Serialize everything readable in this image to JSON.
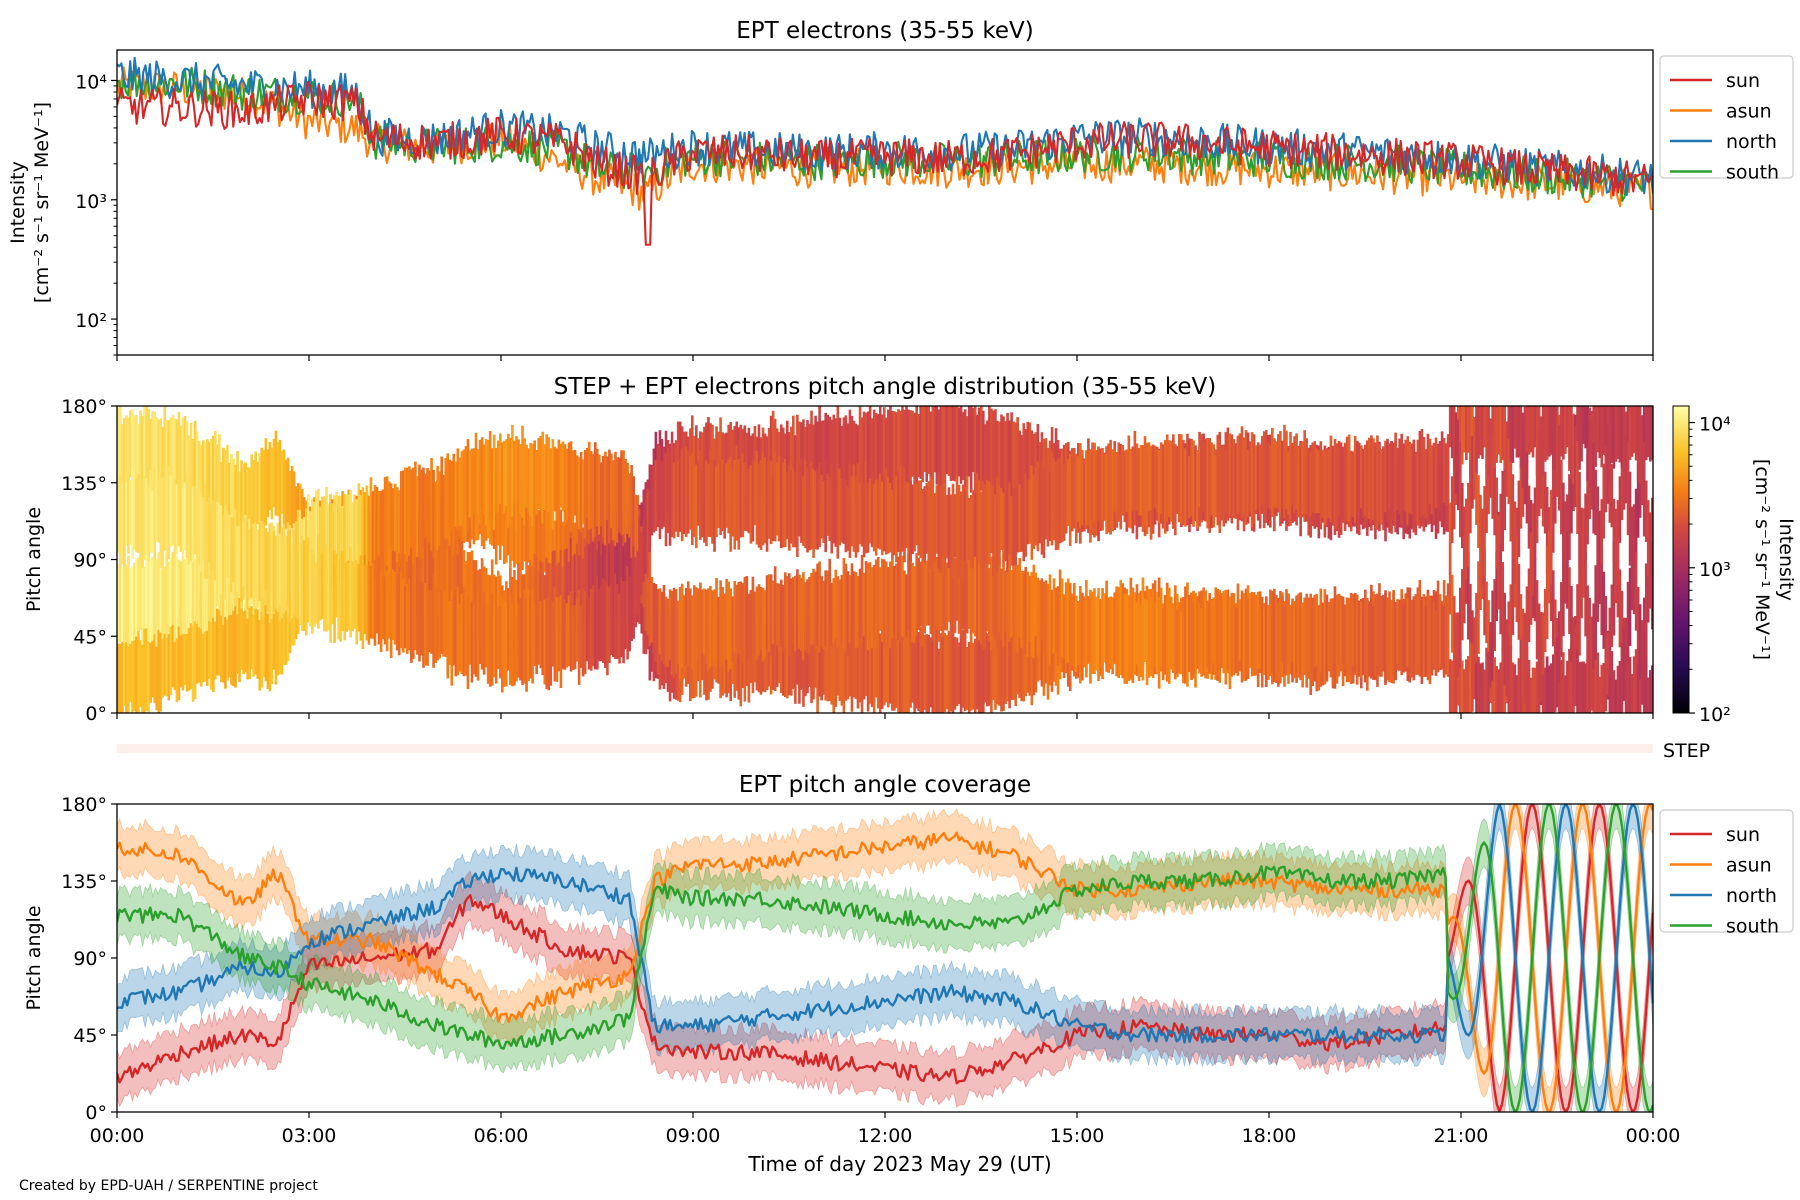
{
  "colors": {
    "sun": "#d62728",
    "asun": "#ff7f0e",
    "north": "#1f77b4",
    "south": "#2ca02c"
  },
  "xaxis": {
    "label": "Time of day 2023 May 29 (UT)",
    "ticks": [
      "00:00",
      "03:00",
      "06:00",
      "09:00",
      "12:00",
      "15:00",
      "18:00",
      "21:00",
      "00:00"
    ],
    "range_hours": [
      0,
      24
    ]
  },
  "credit": "Created by EPD-UAH / SERPENTINE project",
  "chart_data": [
    {
      "type": "line",
      "title": "EPT electrons (35-55 keV)",
      "ylabel": [
        "Intensity",
        "[cm⁻² s⁻¹ sr⁻¹ MeV⁻¹]"
      ],
      "yscale": "log",
      "ylim": [
        50,
        18000
      ],
      "yticks": [
        "10²",
        "10³",
        "10⁴"
      ],
      "legend": {
        "placement": "outside-right-top",
        "entries": [
          "sun",
          "asun",
          "north",
          "south"
        ]
      },
      "x_hours": [
        0,
        1,
        2,
        3,
        3.7,
        4,
        5,
        6,
        7,
        7.5,
        8.3,
        9,
        10,
        11,
        12,
        13,
        14,
        15,
        16,
        17,
        18,
        19,
        20,
        21,
        22,
        23,
        24
      ],
      "series": [
        {
          "name": "sun",
          "values": [
            6000,
            6000,
            5500,
            7000,
            6500,
            3300,
            3000,
            3500,
            3000,
            2000,
            1500,
            2500,
            2400,
            2200,
            2300,
            2200,
            2400,
            3000,
            3200,
            3000,
            2700,
            2500,
            2300,
            2100,
            1800,
            1600,
            1400
          ]
        },
        {
          "name": "asun",
          "values": [
            9000,
            8500,
            7500,
            4500,
            4000,
            3000,
            2700,
            3200,
            2000,
            1500,
            1100,
            2000,
            1900,
            1800,
            1900,
            1800,
            1900,
            2000,
            2000,
            1900,
            1800,
            1700,
            1600,
            1500,
            1400,
            1300,
            1200
          ]
        },
        {
          "name": "north",
          "values": [
            11000,
            10000,
            9000,
            8500,
            8000,
            3400,
            3200,
            4000,
            3500,
            2700,
            2300,
            2800,
            2600,
            2500,
            2600,
            2500,
            2700,
            3300,
            3400,
            3100,
            2800,
            2600,
            2400,
            2200,
            1900,
            1700,
            1500
          ]
        },
        {
          "name": "south",
          "values": [
            10000,
            9500,
            8000,
            7500,
            7000,
            3100,
            2800,
            3000,
            2600,
            1800,
            1700,
            2300,
            2200,
            2100,
            2200,
            2100,
            2200,
            2400,
            2500,
            2300,
            2200,
            2100,
            2000,
            1800,
            1600,
            1500,
            1300
          ]
        }
      ]
    },
    {
      "type": "heatmap",
      "title": "STEP + EPT electrons pitch angle distribution (35-55 keV)",
      "ylabel": "Pitch angle",
      "ylim": [
        0,
        180
      ],
      "yticks": [
        "0°",
        "45°",
        "90°",
        "135°",
        "180°"
      ],
      "colorbar": {
        "label": [
          "Intensity",
          "[cm⁻² s⁻¹ sr⁻¹ MeV⁻¹]"
        ],
        "scale": "log",
        "range": [
          100,
          13000
        ],
        "ticks": [
          "10²",
          "10³",
          "10⁴"
        ],
        "colormap": "inferno"
      },
      "secondary_label": "STEP"
    },
    {
      "type": "area",
      "title": "EPT pitch angle coverage",
      "ylabel": "Pitch angle",
      "ylim": [
        0,
        180
      ],
      "yticks": [
        "0°",
        "45°",
        "90°",
        "135°",
        "180°"
      ],
      "legend": {
        "placement": "outside-right-top",
        "entries": [
          "sun",
          "asun",
          "north",
          "south"
        ]
      },
      "x_hours": [
        0,
        1,
        2,
        2.5,
        3,
        4,
        5,
        5.5,
        6,
        7,
        8,
        8.4,
        9,
        10,
        11,
        12,
        13,
        14,
        15,
        16,
        17,
        18,
        19,
        20,
        20.8
      ],
      "series": [
        {
          "name": "sun",
          "values": [
            20,
            35,
            45,
            40,
            85,
            90,
            95,
            125,
            115,
            95,
            90,
            40,
            35,
            35,
            30,
            25,
            20,
            30,
            45,
            50,
            45,
            45,
            40,
            45,
            50
          ]
        },
        {
          "name": "asun",
          "values": [
            155,
            150,
            120,
            140,
            100,
            100,
            80,
            70,
            55,
            70,
            80,
            135,
            145,
            145,
            150,
            155,
            160,
            150,
            130,
            130,
            135,
            135,
            130,
            130,
            130
          ]
        },
        {
          "name": "north",
          "values": [
            65,
            70,
            85,
            80,
            100,
            110,
            120,
            135,
            140,
            135,
            125,
            50,
            50,
            55,
            60,
            65,
            70,
            65,
            50,
            45,
            45,
            45,
            45,
            45,
            45
          ]
        },
        {
          "name": "south",
          "values": [
            115,
            115,
            90,
            85,
            75,
            65,
            50,
            45,
            40,
            45,
            55,
            130,
            125,
            125,
            120,
            115,
            110,
            110,
            130,
            135,
            135,
            140,
            135,
            135,
            140
          ]
        }
      ],
      "oscillation_after_hours": 20.8
    }
  ]
}
